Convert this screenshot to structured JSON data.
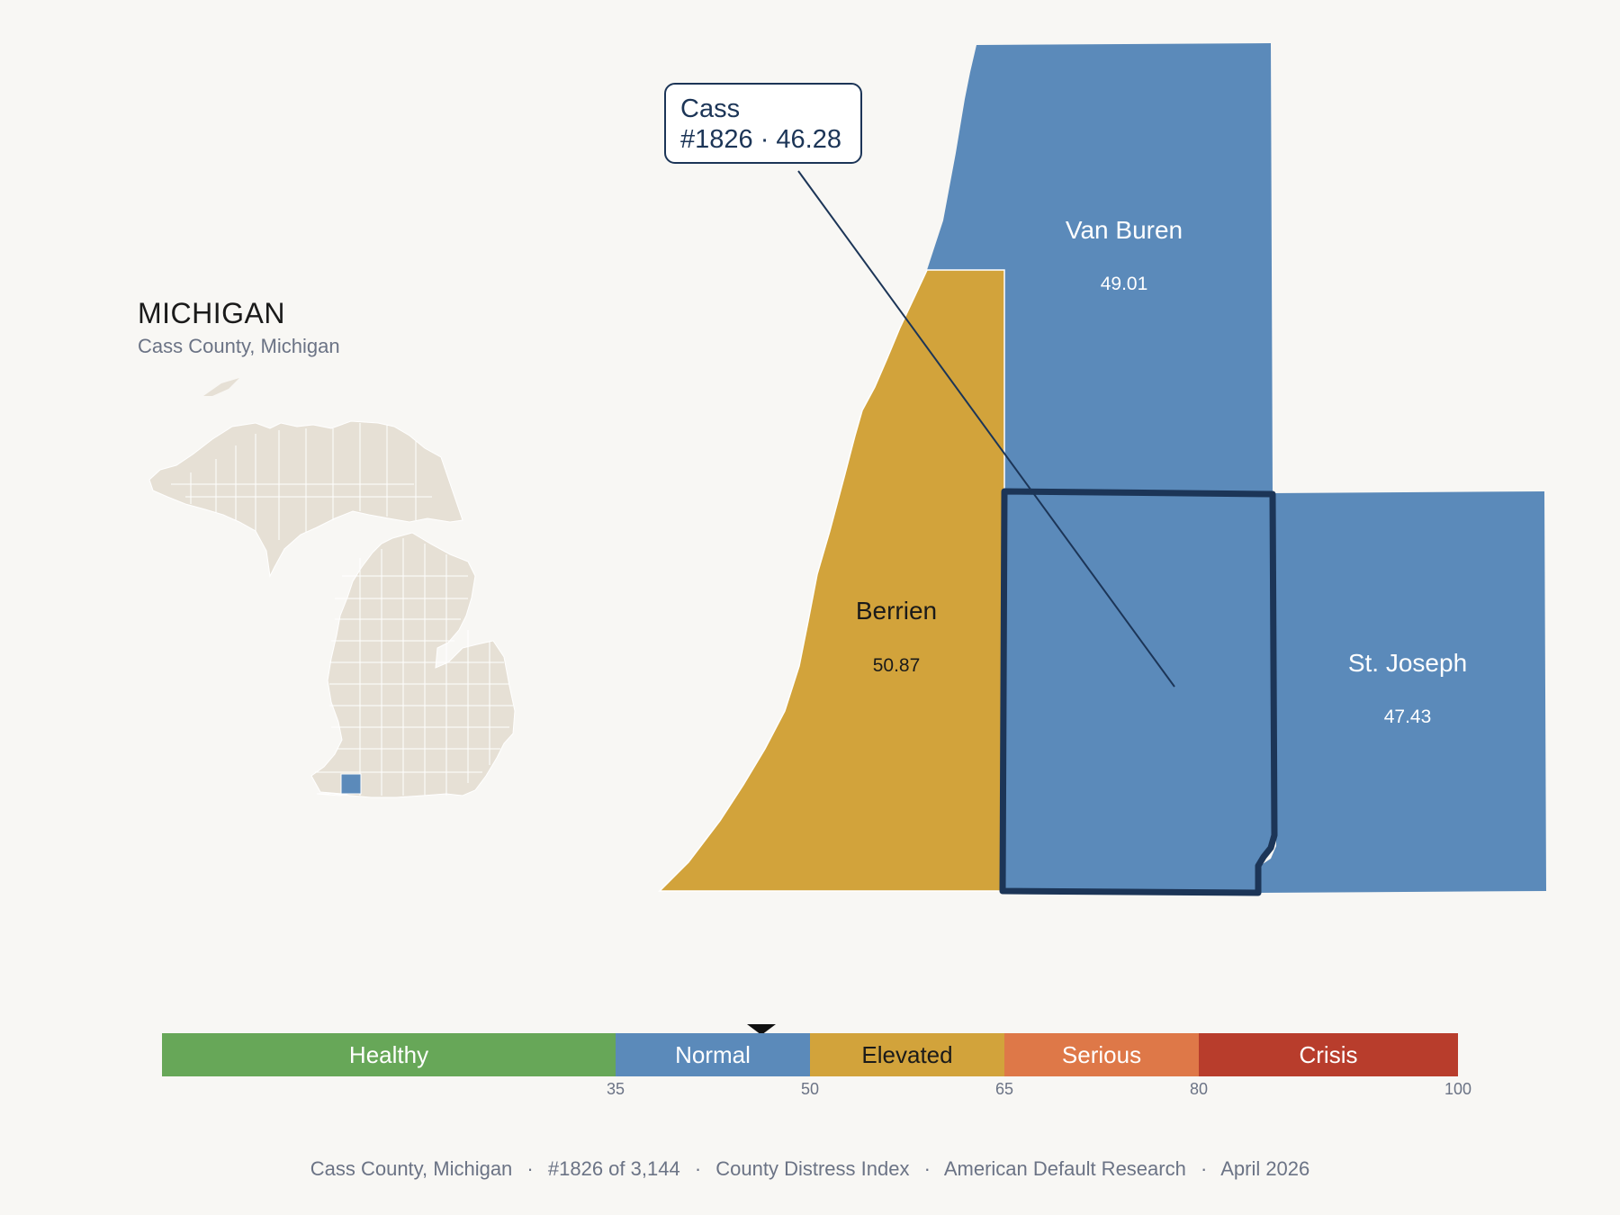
{
  "state": {
    "title": "MICHIGAN",
    "subtitle": "Cass County, Michigan"
  },
  "callout": {
    "line1": "Cass",
    "line2": "#1826 · 46.28"
  },
  "colors": {
    "healthy": "#67a758",
    "normal": "#5b8aba",
    "elevated": "#d2a33b",
    "serious": "#de7848",
    "crisis": "#b83d2c",
    "outline": "#1c3557",
    "inset_land": "#e6e0d5",
    "background": "#f8f7f4"
  },
  "counties": [
    {
      "name": "Van Buren",
      "value": "49.01",
      "category": "normal"
    },
    {
      "name": "Berrien",
      "value": "50.87",
      "category": "elevated"
    },
    {
      "name": "St. Joseph",
      "value": "47.43",
      "category": "normal"
    },
    {
      "name": "Cass",
      "value": "46.28",
      "category": "normal",
      "rank": "#1826",
      "selected": true
    }
  ],
  "scale": {
    "segments": [
      {
        "label": "Healthy",
        "from": 0,
        "to": 35,
        "color": "#67a758"
      },
      {
        "label": "Normal",
        "from": 35,
        "to": 50,
        "color": "#5b8aba"
      },
      {
        "label": "Elevated",
        "from": 50,
        "to": 65,
        "color": "#d2a33b"
      },
      {
        "label": "Serious",
        "from": 65,
        "to": 80,
        "color": "#de7848"
      },
      {
        "label": "Crisis",
        "from": 80,
        "to": 100,
        "color": "#b83d2c"
      }
    ],
    "ticks": [
      "35",
      "50",
      "65",
      "80",
      "100"
    ],
    "marker_value": 46.28
  },
  "footer": {
    "county": "Cass County, Michigan",
    "rank": "#1826 of 3,144",
    "index": "County Distress Index",
    "source": "American Default Research",
    "date": "April 2026",
    "sep": "·"
  }
}
